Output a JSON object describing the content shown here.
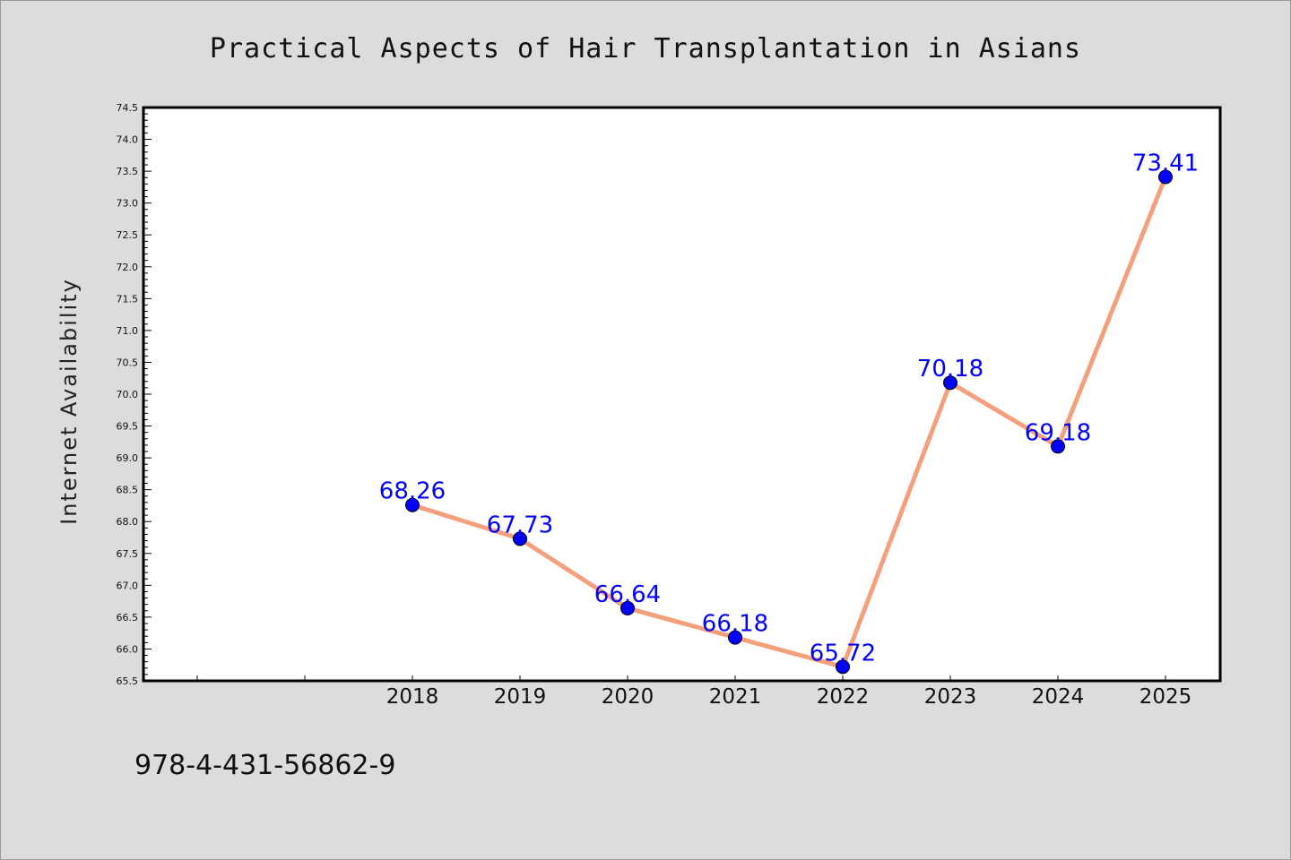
{
  "chart_data": {
    "type": "line",
    "title": "Practical Aspects of Hair Transplantation in Asians",
    "xlabel": "",
    "ylabel": "Internet Availability",
    "categories": [
      "",
      "",
      "2018",
      "2019",
      "2020",
      "2021",
      "2022",
      "2023",
      "2024",
      "2025"
    ],
    "series": [
      {
        "x": [
          "2018",
          "2019",
          "2020",
          "2021",
          "2022",
          "2023",
          "2024",
          "2025"
        ],
        "values": [
          68.26,
          67.73,
          66.64,
          66.18,
          65.72,
          70.18,
          69.18,
          73.41
        ],
        "data_labels": [
          "68.26",
          "67.73",
          "66.64",
          "66.18",
          "65.72",
          "70.18",
          "69.18",
          "73.41"
        ],
        "line_color": "#f4a07c",
        "marker_color": "#0000ff"
      }
    ],
    "ylim": [
      65.5,
      74.5
    ],
    "yticks": [
      "65.5",
      "66.0",
      "66.5",
      "67.0",
      "67.5",
      "68.0",
      "68.5",
      "69.0",
      "69.5",
      "70.0",
      "70.5",
      "71.0",
      "71.5",
      "72.0",
      "72.5",
      "73.0",
      "73.5",
      "74.0",
      "74.5"
    ],
    "grid": false,
    "legend": "none"
  },
  "footer": {
    "isbn": "978-4-431-56862-9"
  }
}
